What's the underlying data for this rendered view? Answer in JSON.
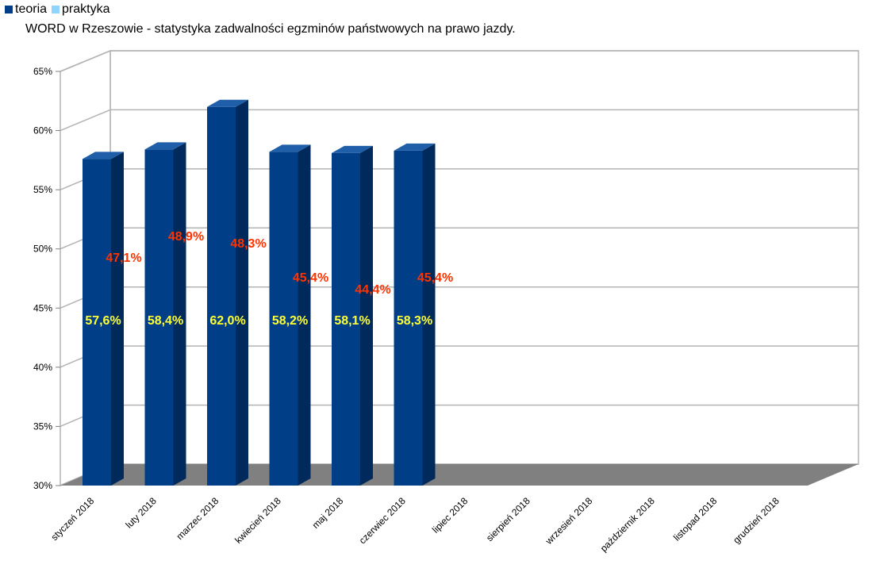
{
  "legend": {
    "teoria": "teoria",
    "praktyka": "praktyka"
  },
  "colors": {
    "teoria": "#003f88",
    "praktyka": "#8fd3ff",
    "teoria_label": "#ffff33",
    "praktyka_label": "#ff3300",
    "floor": "#808080",
    "grid": "#b3b3b3"
  },
  "chart_data": {
    "type": "bar",
    "title": "WORD w Rzeszowie - statystyka zadwalności egzminów państwowych na prawo jazdy.",
    "xlabel": "",
    "ylabel": "",
    "ylim": [
      30,
      65
    ],
    "grid": true,
    "legend_position": "top-left",
    "three_d": true,
    "y_ticks": [
      "30%",
      "35%",
      "40%",
      "45%",
      "50%",
      "55%",
      "60%",
      "65%"
    ],
    "categories": [
      "styczeń 2018",
      "luty 2018",
      "marzec 2018",
      "kwiecień 2018",
      "maj 2018",
      "czerwiec 2018",
      "lipiec 2018",
      "sierpień 2018",
      "wrzesień 2018",
      "październik 2018",
      "listopad 2018",
      "grudzień 2018"
    ],
    "series": [
      {
        "name": "teoria",
        "values": [
          57.6,
          58.4,
          62.0,
          58.2,
          58.1,
          58.3,
          null,
          null,
          null,
          null,
          null,
          null
        ],
        "labels": [
          "57,6%",
          "58,4%",
          "62,0%",
          "58,2%",
          "58,1%",
          "58,3%"
        ]
      },
      {
        "name": "praktyka",
        "values": [
          47.1,
          48.9,
          48.3,
          45.4,
          44.4,
          45.4,
          null,
          null,
          null,
          null,
          null,
          null
        ],
        "labels": [
          "47,1%",
          "48,9%",
          "48,3%",
          "45,4%",
          "44,4%",
          "45,4%"
        ]
      }
    ]
  }
}
